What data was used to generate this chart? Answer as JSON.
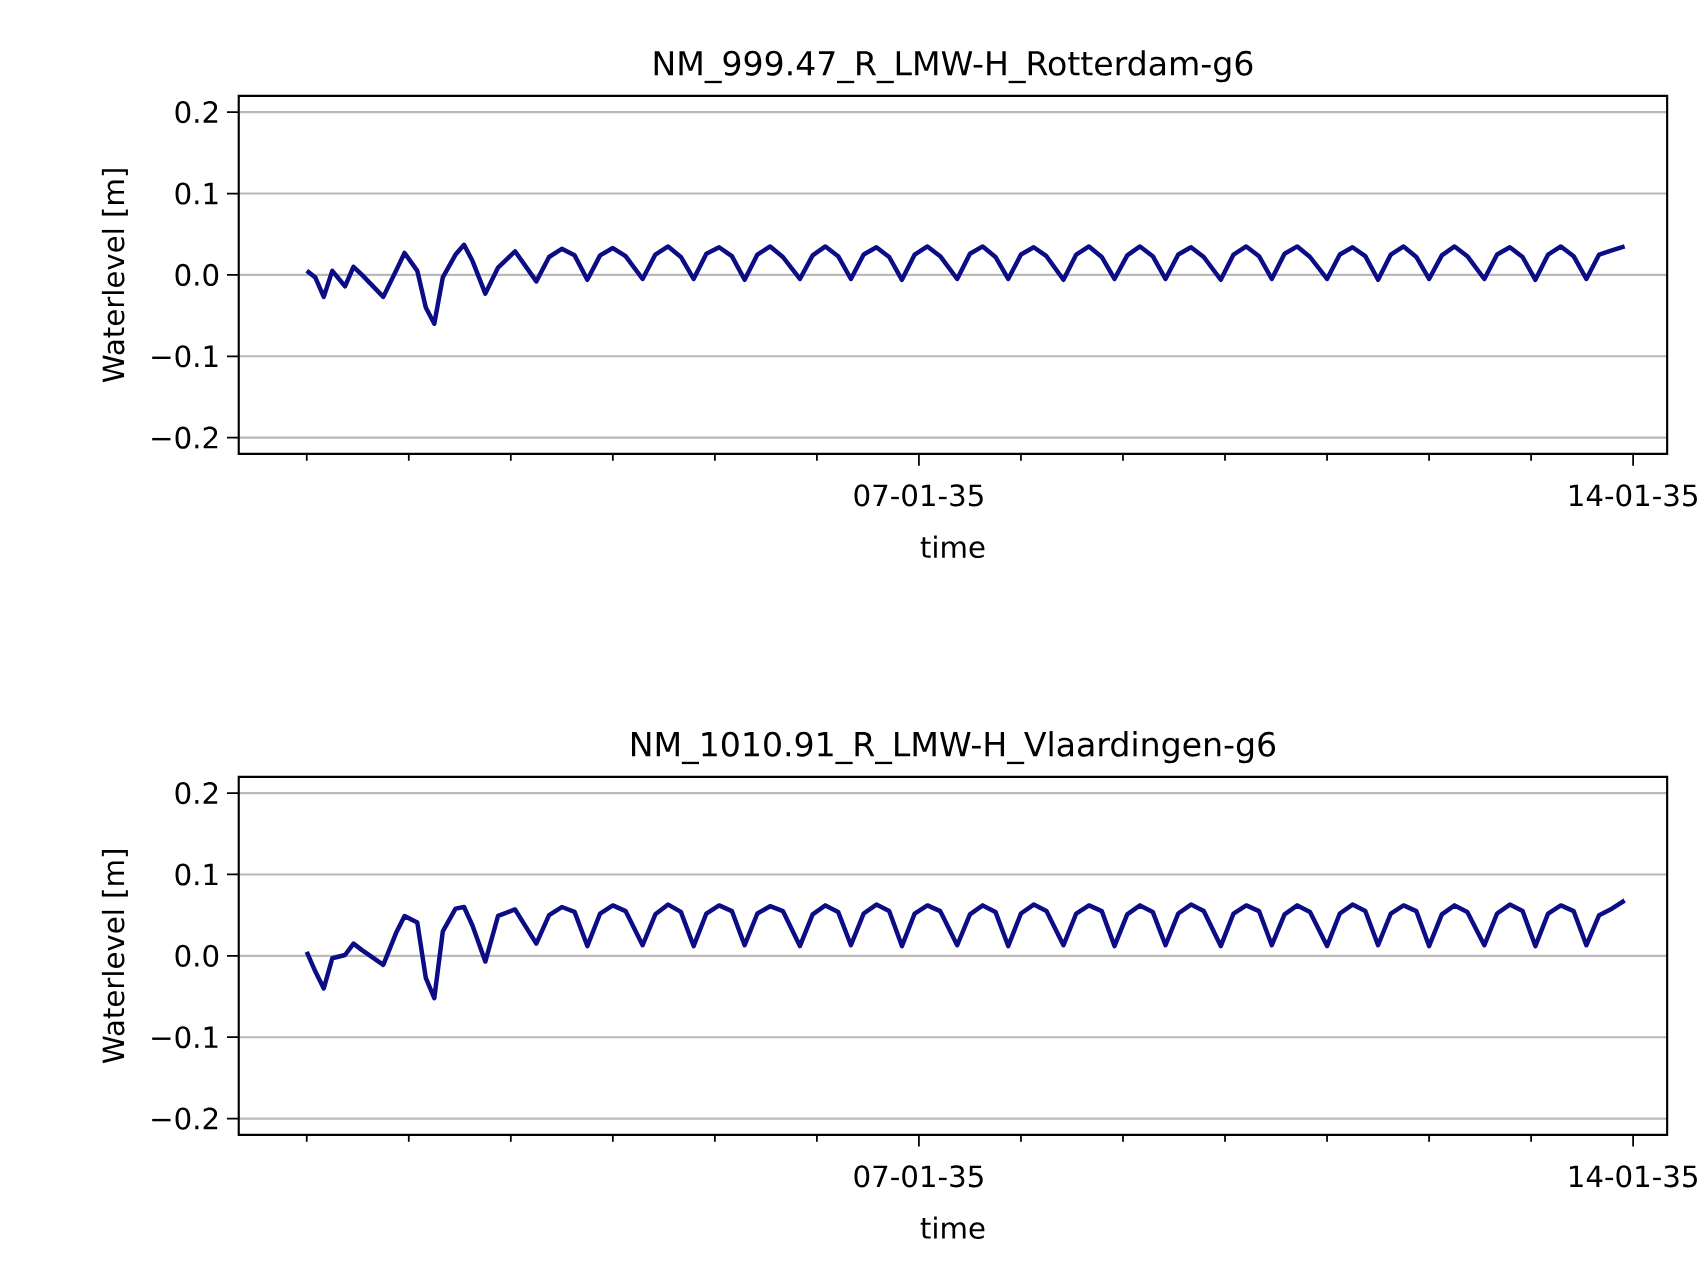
{
  "chart_data": [
    {
      "type": "line",
      "title": "NM_999.47_R_LMW-H_Rotterdam-g6",
      "xlabel": "time",
      "ylabel": "Waterlevel [m]",
      "color": "#0c0c85",
      "grid": "y",
      "xlim": [
        "2034-12-31T08:00",
        "2035-01-14T08:00"
      ],
      "ylim": [
        -0.22,
        0.22
      ],
      "xticks": [
        {
          "value": "2035-01-01",
          "label": null
        },
        {
          "value": "2035-01-02",
          "label": null
        },
        {
          "value": "2035-01-03",
          "label": null
        },
        {
          "value": "2035-01-04",
          "label": null
        },
        {
          "value": "2035-01-05",
          "label": null
        },
        {
          "value": "2035-01-06",
          "label": null
        },
        {
          "value": "2035-01-07",
          "label": "07-01-35"
        },
        {
          "value": "2035-01-08",
          "label": null
        },
        {
          "value": "2035-01-09",
          "label": null
        },
        {
          "value": "2035-01-10",
          "label": null
        },
        {
          "value": "2035-01-11",
          "label": null
        },
        {
          "value": "2035-01-12",
          "label": null
        },
        {
          "value": "2035-01-13",
          "label": null
        },
        {
          "value": "2035-01-14",
          "label": "14-01-35"
        }
      ],
      "yticks": [
        {
          "value": -0.2,
          "label": "−0.2"
        },
        {
          "value": -0.1,
          "label": "−0.1"
        },
        {
          "value": 0,
          "label": "0.0"
        },
        {
          "value": 0.1,
          "label": "0.1"
        },
        {
          "value": 0.2,
          "label": "0.2"
        }
      ],
      "x": [
        "2035-01-01T00:00",
        "2035-01-01T02:00",
        "2035-01-01T04:00",
        "2035-01-01T06:00",
        "2035-01-01T09:00",
        "2035-01-01T11:00",
        "2035-01-01T13:00",
        "2035-01-01T18:00",
        "2035-01-01T21:00",
        "2035-01-01T23:00",
        "2035-01-02T02:00",
        "2035-01-02T04:00",
        "2035-01-02T06:00",
        "2035-01-02T08:00",
        "2035-01-02T11:00",
        "2035-01-02T13:00",
        "2035-01-02T15:00",
        "2035-01-02T18:00",
        "2035-01-02T21:00",
        "2035-01-03T01:00",
        "2035-01-03T06:00",
        "2035-01-03T09:00",
        "2035-01-03T12:00",
        "2035-01-03T15:00",
        "2035-01-03T18:00",
        "2035-01-03T21:00",
        "2035-01-04T00:00",
        "2035-01-04T03:00",
        "2035-01-04T07:00",
        "2035-01-04T10:00",
        "2035-01-04T13:00",
        "2035-01-04T16:00",
        "2035-01-04T19:00",
        "2035-01-04T22:00",
        "2035-01-05T01:00",
        "2035-01-05T04:00",
        "2035-01-05T07:00",
        "2035-01-05T10:00",
        "2035-01-05T13:00",
        "2035-01-05T16:00",
        "2035-01-05T20:00",
        "2035-01-05T23:00",
        "2035-01-06T02:00",
        "2035-01-06T05:00",
        "2035-01-06T08:00",
        "2035-01-06T11:00",
        "2035-01-06T14:00",
        "2035-01-06T17:00",
        "2035-01-06T20:00",
        "2035-01-06T23:00",
        "2035-01-07T02:00",
        "2035-01-07T05:00",
        "2035-01-07T09:00",
        "2035-01-07T12:00",
        "2035-01-07T15:00",
        "2035-01-07T18:00",
        "2035-01-07T21:00",
        "2035-01-08T00:00",
        "2035-01-08T03:00",
        "2035-01-08T06:00",
        "2035-01-08T10:00",
        "2035-01-08T13:00",
        "2035-01-08T16:00",
        "2035-01-08T19:00",
        "2035-01-08T22:00",
        "2035-01-09T01:00",
        "2035-01-09T04:00",
        "2035-01-09T07:00",
        "2035-01-09T10:00",
        "2035-01-09T13:00",
        "2035-01-09T16:00",
        "2035-01-09T19:00",
        "2035-01-09T23:00",
        "2035-01-10T02:00",
        "2035-01-10T05:00",
        "2035-01-10T08:00",
        "2035-01-10T11:00",
        "2035-01-10T14:00",
        "2035-01-10T17:00",
        "2035-01-10T20:00",
        "2035-01-11T00:00",
        "2035-01-11T03:00",
        "2035-01-11T06:00",
        "2035-01-11T09:00",
        "2035-01-11T12:00",
        "2035-01-11T15:00",
        "2035-01-11T18:00",
        "2035-01-11T21:00",
        "2035-01-12T00:00",
        "2035-01-12T03:00",
        "2035-01-12T06:00",
        "2035-01-12T09:00",
        "2035-01-12T13:00",
        "2035-01-12T16:00",
        "2035-01-12T19:00",
        "2035-01-12T22:00",
        "2035-01-13T01:00",
        "2035-01-13T04:00",
        "2035-01-13T07:00",
        "2035-01-13T10:00",
        "2035-01-13T13:00",
        "2035-01-13T16:00",
        "2035-01-13T19:00",
        "2035-01-13T22:00"
      ],
      "values": [
        0.005,
        -0.003,
        -0.027,
        0.005,
        -0.014,
        0.01,
        0.0,
        -0.027,
        0.005,
        0.027,
        0.005,
        -0.04,
        -0.06,
        -0.003,
        0.025,
        0.037,
        0.017,
        -0.023,
        0.009,
        0.029,
        -0.008,
        0.022,
        0.032,
        0.024,
        -0.006,
        0.024,
        0.033,
        0.023,
        -0.005,
        0.025,
        0.035,
        0.022,
        -0.005,
        0.026,
        0.034,
        0.023,
        -0.006,
        0.025,
        0.035,
        0.022,
        -0.005,
        0.024,
        0.035,
        0.023,
        -0.005,
        0.025,
        0.034,
        0.022,
        -0.006,
        0.025,
        0.035,
        0.023,
        -0.005,
        0.026,
        0.035,
        0.022,
        -0.005,
        0.025,
        0.034,
        0.023,
        -0.006,
        0.025,
        0.035,
        0.022,
        -0.005,
        0.024,
        0.035,
        0.023,
        -0.005,
        0.025,
        0.034,
        0.022,
        -0.006,
        0.025,
        0.035,
        0.023,
        -0.005,
        0.026,
        0.035,
        0.022,
        -0.005,
        0.025,
        0.034,
        0.023,
        -0.006,
        0.025,
        0.035,
        0.022,
        -0.005,
        0.024,
        0.035,
        0.023,
        -0.005,
        0.025,
        0.034,
        0.022,
        -0.006,
        0.025,
        0.035,
        0.023,
        -0.005,
        0.025,
        0.03,
        0.035
      ]
    },
    {
      "type": "line",
      "title": "NM_1010.91_R_LMW-H_Vlaardingen-g6",
      "xlabel": "time",
      "ylabel": "Waterlevel [m]",
      "color": "#0c0c85",
      "grid": "y",
      "xlim": [
        "2034-12-31T08:00",
        "2035-01-14T08:00"
      ],
      "ylim": [
        -0.22,
        0.22
      ],
      "xticks": [
        {
          "value": "2035-01-01",
          "label": null
        },
        {
          "value": "2035-01-02",
          "label": null
        },
        {
          "value": "2035-01-03",
          "label": null
        },
        {
          "value": "2035-01-04",
          "label": null
        },
        {
          "value": "2035-01-05",
          "label": null
        },
        {
          "value": "2035-01-06",
          "label": null
        },
        {
          "value": "2035-01-07",
          "label": "07-01-35"
        },
        {
          "value": "2035-01-08",
          "label": null
        },
        {
          "value": "2035-01-09",
          "label": null
        },
        {
          "value": "2035-01-10",
          "label": null
        },
        {
          "value": "2035-01-11",
          "label": null
        },
        {
          "value": "2035-01-12",
          "label": null
        },
        {
          "value": "2035-01-13",
          "label": null
        },
        {
          "value": "2035-01-14",
          "label": "14-01-35"
        }
      ],
      "yticks": [
        {
          "value": -0.2,
          "label": "−0.2"
        },
        {
          "value": -0.1,
          "label": "−0.1"
        },
        {
          "value": 0,
          "label": "0.0"
        },
        {
          "value": 0.1,
          "label": "0.1"
        },
        {
          "value": 0.2,
          "label": "0.2"
        }
      ],
      "x": [
        "2035-01-01T00:00",
        "2035-01-01T02:00",
        "2035-01-01T04:00",
        "2035-01-01T06:00",
        "2035-01-01T09:00",
        "2035-01-01T11:00",
        "2035-01-01T13:00",
        "2035-01-01T18:00",
        "2035-01-01T21:00",
        "2035-01-01T23:00",
        "2035-01-02T02:00",
        "2035-01-02T04:00",
        "2035-01-02T06:00",
        "2035-01-02T08:00",
        "2035-01-02T11:00",
        "2035-01-02T13:00",
        "2035-01-02T15:00",
        "2035-01-02T18:00",
        "2035-01-02T21:00",
        "2035-01-03T01:00",
        "2035-01-03T06:00",
        "2035-01-03T09:00",
        "2035-01-03T12:00",
        "2035-01-03T15:00",
        "2035-01-03T18:00",
        "2035-01-03T21:00",
        "2035-01-04T00:00",
        "2035-01-04T03:00",
        "2035-01-04T07:00",
        "2035-01-04T10:00",
        "2035-01-04T13:00",
        "2035-01-04T16:00",
        "2035-01-04T19:00",
        "2035-01-04T22:00",
        "2035-01-05T01:00",
        "2035-01-05T04:00",
        "2035-01-05T07:00",
        "2035-01-05T10:00",
        "2035-01-05T13:00",
        "2035-01-05T16:00",
        "2035-01-05T20:00",
        "2035-01-05T23:00",
        "2035-01-06T02:00",
        "2035-01-06T05:00",
        "2035-01-06T08:00",
        "2035-01-06T11:00",
        "2035-01-06T14:00",
        "2035-01-06T17:00",
        "2035-01-06T20:00",
        "2035-01-06T23:00",
        "2035-01-07T02:00",
        "2035-01-07T05:00",
        "2035-01-07T09:00",
        "2035-01-07T12:00",
        "2035-01-07T15:00",
        "2035-01-07T18:00",
        "2035-01-07T21:00",
        "2035-01-08T00:00",
        "2035-01-08T03:00",
        "2035-01-08T06:00",
        "2035-01-08T10:00",
        "2035-01-08T13:00",
        "2035-01-08T16:00",
        "2035-01-08T19:00",
        "2035-01-08T22:00",
        "2035-01-09T01:00",
        "2035-01-09T04:00",
        "2035-01-09T07:00",
        "2035-01-09T10:00",
        "2035-01-09T13:00",
        "2035-01-09T16:00",
        "2035-01-09T19:00",
        "2035-01-09T23:00",
        "2035-01-10T02:00",
        "2035-01-10T05:00",
        "2035-01-10T08:00",
        "2035-01-10T11:00",
        "2035-01-10T14:00",
        "2035-01-10T17:00",
        "2035-01-10T20:00",
        "2035-01-11T00:00",
        "2035-01-11T03:00",
        "2035-01-11T06:00",
        "2035-01-11T09:00",
        "2035-01-11T12:00",
        "2035-01-11T15:00",
        "2035-01-11T18:00",
        "2035-01-11T21:00",
        "2035-01-12T00:00",
        "2035-01-12T03:00",
        "2035-01-12T06:00",
        "2035-01-12T09:00",
        "2035-01-12T13:00",
        "2035-01-12T16:00",
        "2035-01-12T19:00",
        "2035-01-12T22:00",
        "2035-01-13T01:00",
        "2035-01-13T04:00",
        "2035-01-13T07:00",
        "2035-01-13T10:00",
        "2035-01-13T13:00",
        "2035-01-13T16:00",
        "2035-01-13T19:00",
        "2035-01-13T22:00"
      ],
      "values": [
        0.005,
        -0.019,
        -0.04,
        -0.003,
        0.001,
        0.015,
        0.007,
        -0.011,
        0.028,
        0.049,
        0.041,
        -0.027,
        -0.052,
        0.03,
        0.058,
        0.06,
        0.037,
        -0.007,
        0.049,
        0.057,
        0.015,
        0.05,
        0.06,
        0.054,
        0.012,
        0.052,
        0.062,
        0.055,
        0.013,
        0.051,
        0.063,
        0.054,
        0.012,
        0.052,
        0.062,
        0.055,
        0.013,
        0.052,
        0.061,
        0.055,
        0.012,
        0.051,
        0.062,
        0.054,
        0.013,
        0.052,
        0.063,
        0.055,
        0.012,
        0.052,
        0.062,
        0.055,
        0.013,
        0.051,
        0.062,
        0.054,
        0.012,
        0.052,
        0.063,
        0.055,
        0.013,
        0.052,
        0.062,
        0.055,
        0.012,
        0.051,
        0.062,
        0.054,
        0.013,
        0.052,
        0.063,
        0.055,
        0.012,
        0.052,
        0.062,
        0.055,
        0.013,
        0.051,
        0.062,
        0.054,
        0.012,
        0.052,
        0.063,
        0.055,
        0.013,
        0.052,
        0.062,
        0.055,
        0.012,
        0.051,
        0.062,
        0.054,
        0.013,
        0.052,
        0.063,
        0.055,
        0.012,
        0.052,
        0.062,
        0.055,
        0.013,
        0.05,
        0.058,
        0.068
      ]
    }
  ]
}
